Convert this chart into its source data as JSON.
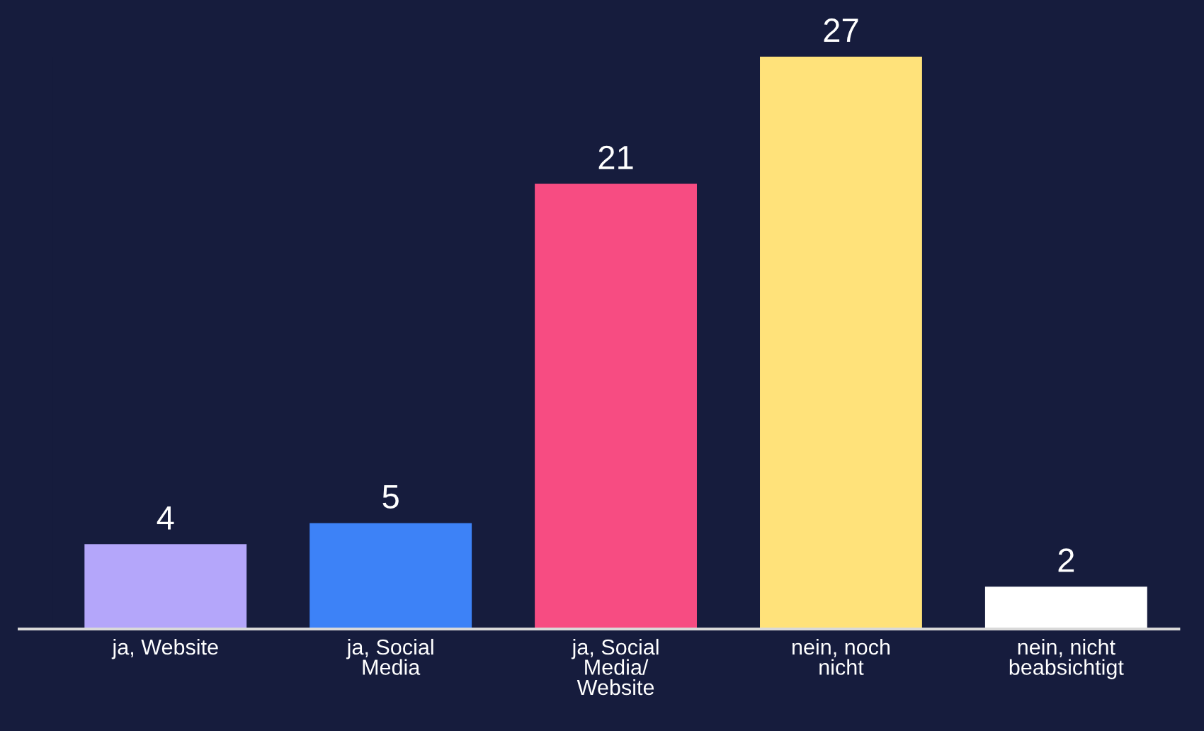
{
  "chart_data": {
    "type": "bar",
    "categories": [
      "ja, Website",
      "ja, Social\nMedia",
      "ja, Social\nMedia/\nWebsite",
      "nein, noch\nnicht",
      "nein, nicht\nbeabsichtigt"
    ],
    "values": [
      4,
      5,
      21,
      27,
      2
    ],
    "colors": [
      "#b4a6fa",
      "#3d82f7",
      "#f74c82",
      "#ffe27a",
      "#ffffff"
    ],
    "data_labels": true,
    "grid": false,
    "legend": false
  }
}
